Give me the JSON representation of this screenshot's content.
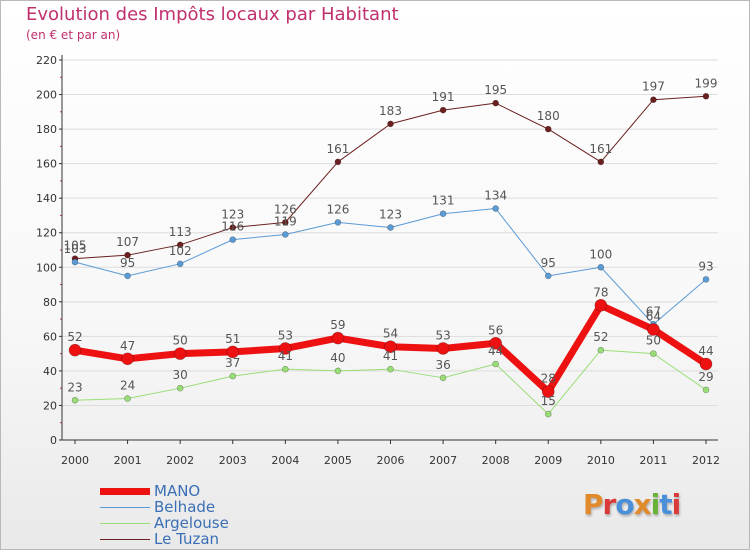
{
  "title": "Evolution des Impôts locaux par Habitant",
  "subtitle": "(en € et par an)",
  "brand": "Proxiti",
  "colors": {
    "title": "#c0306e",
    "axis": "#333333",
    "grid": "#dddddd",
    "tick_label": "#333333",
    "data_label": "#555555",
    "legend_text": "#3a6fb5"
  },
  "chart_data": {
    "type": "line",
    "title": "Evolution des Impôts locaux par Habitant",
    "subtitle": "(en € et par an)",
    "xlabel": "",
    "ylabel": "",
    "ylim": [
      0,
      220
    ],
    "yticks": [
      0,
      20,
      40,
      60,
      80,
      100,
      120,
      140,
      160,
      180,
      200,
      220
    ],
    "categories": [
      "2000",
      "2001",
      "2002",
      "2003",
      "2004",
      "2005",
      "2006",
      "2007",
      "2008",
      "2009",
      "2010",
      "2011",
      "2012"
    ],
    "series": [
      {
        "name": "Le Tuzan",
        "color": "#6b1f1f",
        "width": 1,
        "marker": 3,
        "values": [
          105,
          107,
          113,
          123,
          126,
          161,
          183,
          191,
          195,
          180,
          161,
          197,
          199
        ]
      },
      {
        "name": "Belhade",
        "color": "#5b9bd5",
        "width": 1,
        "marker": 3,
        "values": [
          103,
          95,
          102,
          116,
          119,
          126,
          123,
          131,
          134,
          95,
          100,
          67,
          93
        ]
      },
      {
        "name": "Argelouse",
        "color": "#99dd77",
        "width": 1,
        "marker": 3,
        "values": [
          23,
          24,
          30,
          37,
          41,
          40,
          41,
          36,
          44,
          15,
          52,
          50,
          29
        ]
      },
      {
        "name": "MANO",
        "color": "#ee1111",
        "width": 7,
        "marker": 6,
        "values": [
          52,
          47,
          50,
          51,
          53,
          59,
          54,
          53,
          56,
          28,
          78,
          64,
          44
        ]
      }
    ],
    "legend_order": [
      "MANO",
      "Belhade",
      "Argelouse",
      "Le Tuzan"
    ],
    "legend_position": "bottom-left"
  }
}
